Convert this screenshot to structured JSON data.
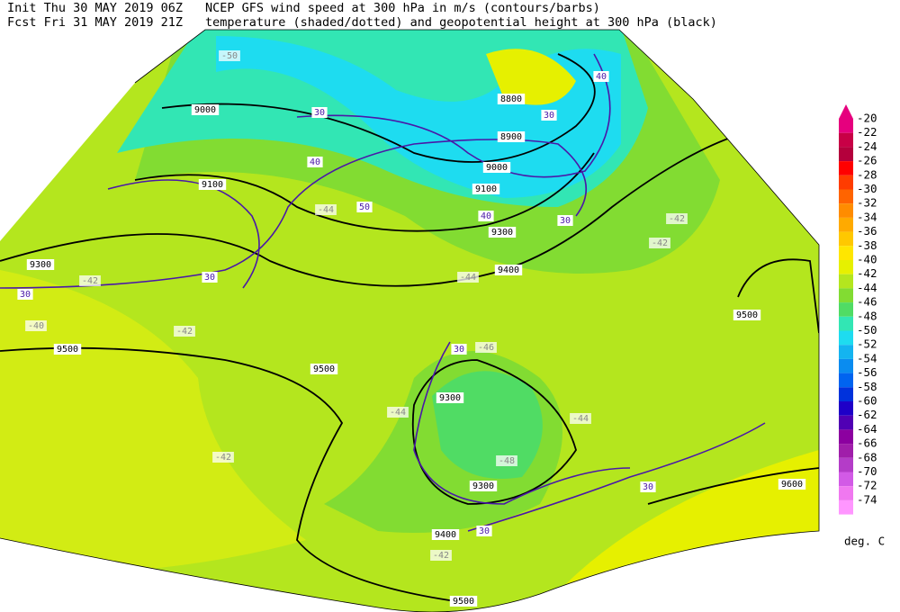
{
  "header": {
    "init": "Init  Thu 30 MAY 2019 06Z",
    "forecast": "Fcst Fri 31 MAY 2019 21Z",
    "title_line1": "NCEP GFS wind speed at 300 hPa in m/s (contours/barbs)",
    "title_line2": "temperature (shaded/dotted) and geopotential height at 300 hPa (black)"
  },
  "colorbar": {
    "unit": "deg. C",
    "levels": [
      {
        "label": "-20",
        "color": "#e6007e"
      },
      {
        "label": "-22",
        "color": "#c80046"
      },
      {
        "label": "-24",
        "color": "#b4003c"
      },
      {
        "label": "-26",
        "color": "#ff0000"
      },
      {
        "label": "-28",
        "color": "#ff3c00"
      },
      {
        "label": "-30",
        "color": "#ff6400"
      },
      {
        "label": "-32",
        "color": "#ff8c00"
      },
      {
        "label": "-34",
        "color": "#ffaa00"
      },
      {
        "label": "-36",
        "color": "#ffc800"
      },
      {
        "label": "-38",
        "color": "#ffe600"
      },
      {
        "label": "-40",
        "color": "#e6f000"
      },
      {
        "label": "-42",
        "color": "#b4e61e"
      },
      {
        "label": "-44",
        "color": "#82dc32"
      },
      {
        "label": "-46",
        "color": "#50dc64"
      },
      {
        "label": "-48",
        "color": "#32e6b4"
      },
      {
        "label": "-50",
        "color": "#1edcf0"
      },
      {
        "label": "-52",
        "color": "#14b4f0"
      },
      {
        "label": "-54",
        "color": "#0a8cf0"
      },
      {
        "label": "-56",
        "color": "#0064f0"
      },
      {
        "label": "-58",
        "color": "#0032dc"
      },
      {
        "label": "-60",
        "color": "#1e00c8"
      },
      {
        "label": "-62",
        "color": "#5000b4"
      },
      {
        "label": "-64",
        "color": "#8c00a0"
      },
      {
        "label": "-66",
        "color": "#a01eaa"
      },
      {
        "label": "-68",
        "color": "#b43cc8"
      },
      {
        "label": "-70",
        "color": "#d25ae6"
      },
      {
        "label": "-72",
        "color": "#f078f0"
      },
      {
        "label": "-74",
        "color": "#ff96ff"
      }
    ]
  },
  "map_labels": [
    "8800",
    "8900",
    "9000",
    "9000",
    "9100",
    "9100",
    "9300",
    "9300",
    "9400",
    "9500",
    "9500",
    "9500",
    "9500",
    "9300",
    "9300",
    "9400",
    "9600",
    "30",
    "40",
    "50",
    "30",
    "30",
    "30",
    "30",
    "30",
    "30",
    "40",
    "40",
    "30",
    "-44",
    "-44",
    "-44",
    "-42",
    "-42",
    "-42",
    "-42",
    "-42",
    "-40",
    "-42",
    "-46",
    "-48",
    "-50",
    "-44"
  ]
}
